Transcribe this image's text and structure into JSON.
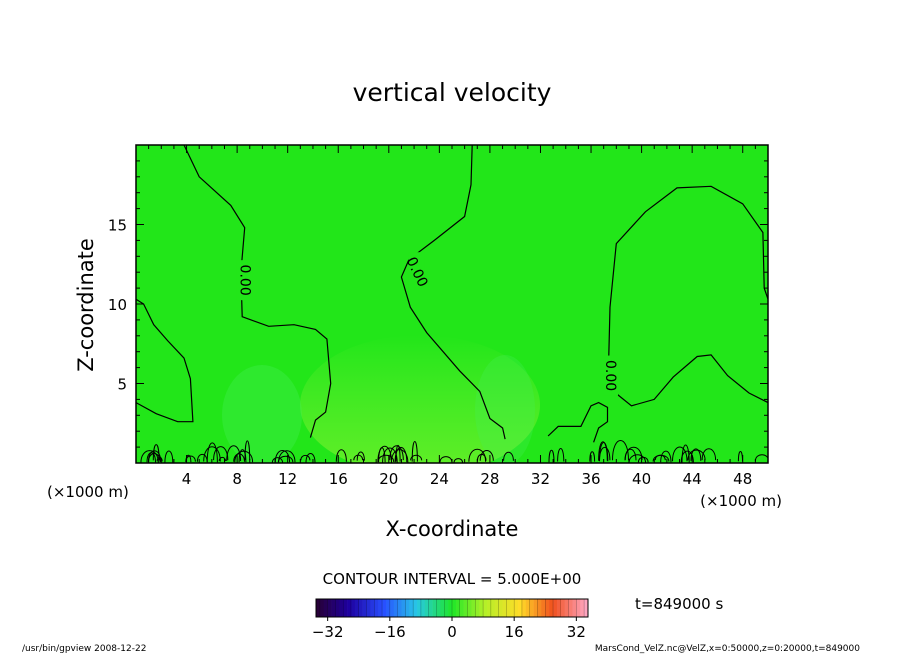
{
  "chart_data": {
    "type": "heatmap",
    "title": "vertical velocity",
    "xlabel": "X-coordinate",
    "ylabel": "Z-coordinate",
    "x_unit_left": "(×1000 m)",
    "x_unit_right": "(×1000 m)",
    "xlim": [
      0,
      50
    ],
    "ylim": [
      0,
      20
    ],
    "x_ticks": [
      4,
      8,
      12,
      16,
      20,
      24,
      28,
      32,
      36,
      40,
      44,
      48
    ],
    "y_ticks": [
      5,
      10,
      15
    ],
    "contour_interval_text": "CONTOUR INTERVAL = 5.000E+00",
    "contour_labels": [
      {
        "text": "0.00",
        "x": 8.6,
        "z": 11.5
      },
      {
        "text": "0.00",
        "x": 22.2,
        "z": 12.0
      },
      {
        "text": "0.00",
        "x": 37.5,
        "z": 5.5
      }
    ],
    "contours": [
      [
        [
          3.8,
          20
        ],
        [
          5,
          18
        ],
        [
          7.5,
          16.2
        ],
        [
          8.6,
          14.8
        ],
        [
          8.3,
          12
        ],
        [
          8.4,
          9.2
        ],
        [
          10.5,
          8.6
        ],
        [
          12.5,
          8.7
        ],
        [
          14.2,
          8.4
        ],
        [
          15.1,
          7.8
        ],
        [
          15.4,
          5
        ],
        [
          15.0,
          3.2
        ],
        [
          14.2,
          2.7
        ],
        [
          13.8,
          1.6
        ]
      ],
      [
        [
          0,
          10.3
        ],
        [
          0.6,
          10
        ],
        [
          1.4,
          8.7
        ],
        [
          2.5,
          7.7
        ],
        [
          3.8,
          6.6
        ],
        [
          4.3,
          5.3
        ],
        [
          4.5,
          2.6
        ],
        [
          3.3,
          2.6
        ],
        [
          1.6,
          3.1
        ],
        [
          0,
          3.8
        ]
      ],
      [
        [
          26.6,
          20
        ],
        [
          26.5,
          17.5
        ],
        [
          26.0,
          15.5
        ],
        [
          23.6,
          14.0
        ],
        [
          21.6,
          12.8
        ],
        [
          21.0,
          11.7
        ],
        [
          21.7,
          9.8
        ],
        [
          23.0,
          8.2
        ],
        [
          25.6,
          5.8
        ],
        [
          27.2,
          4.5
        ],
        [
          28.0,
          2.8
        ],
        [
          29.0,
          2.2
        ],
        [
          29.2,
          1.5
        ]
      ],
      [
        [
          50,
          10.3
        ],
        [
          49.7,
          11.0
        ],
        [
          49.6,
          14.5
        ],
        [
          48.0,
          16.3
        ],
        [
          45.5,
          17.4
        ],
        [
          42.8,
          17.3
        ],
        [
          40.3,
          15.8
        ],
        [
          38.0,
          13.8
        ],
        [
          37.5,
          9.8
        ],
        [
          37.4,
          6.5
        ],
        [
          38.1,
          4.3
        ],
        [
          39.2,
          3.6
        ],
        [
          41.0,
          4.0
        ],
        [
          42.5,
          5.4
        ],
        [
          44.4,
          6.7
        ],
        [
          45.5,
          6.8
        ],
        [
          46.8,
          5.5
        ],
        [
          48.5,
          4.4
        ],
        [
          50,
          3.8
        ]
      ],
      [
        [
          32.6,
          1.7
        ],
        [
          33.4,
          2.3
        ],
        [
          35.2,
          2.3
        ],
        [
          36.0,
          3.6
        ],
        [
          36.6,
          3.8
        ],
        [
          37.3,
          3.5
        ],
        [
          37.3,
          2.6
        ],
        [
          36.6,
          2.2
        ],
        [
          36.2,
          1.3
        ]
      ]
    ],
    "color_scale": {
      "min": -35,
      "max": 35,
      "ticks": [
        -32,
        -16,
        0,
        16,
        32
      ],
      "field_color": "#22e619"
    },
    "time_label": "t=849000 s"
  },
  "footer": {
    "left": "/usr/bin/gpview   2008-12-22",
    "right": "MarsCond_VelZ.nc@VelZ,x=0:50000,z=0:20000,t=849000"
  }
}
